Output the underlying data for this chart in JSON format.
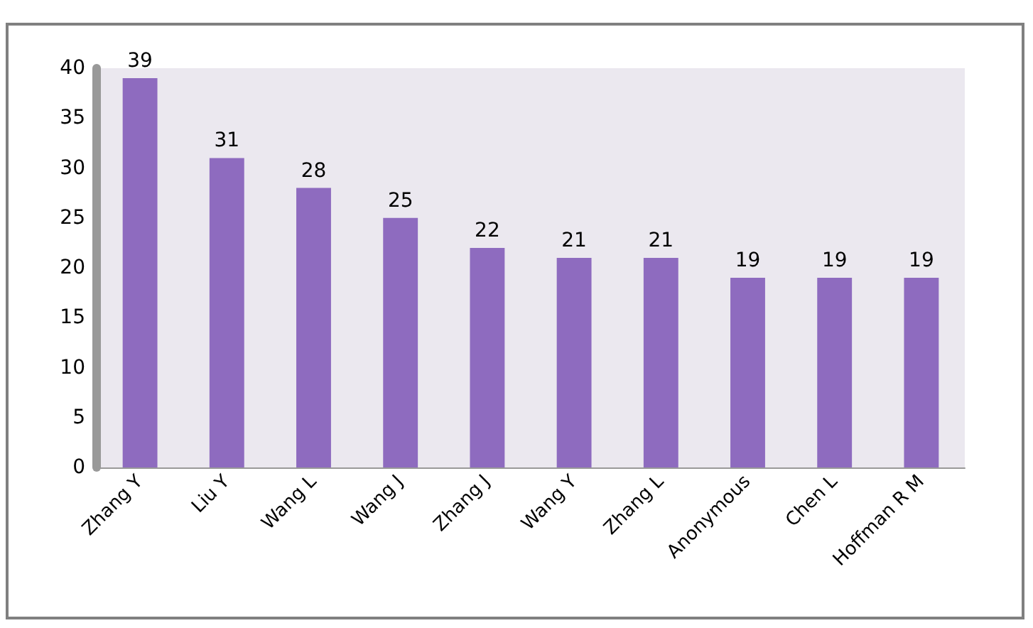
{
  "chart_data": {
    "type": "bar",
    "categories": [
      "Zhang Y",
      "Liu Y",
      "Wang L",
      "Wang J",
      "Zhang J",
      "Wang Y",
      "Zhang L",
      "Anonymous",
      "Chen L",
      "Hoffman R M"
    ],
    "values": [
      39,
      31,
      28,
      25,
      22,
      21,
      21,
      19,
      19,
      19
    ],
    "color": "#8e6bbf",
    "ylim": [
      0,
      40
    ],
    "yticks": [
      0,
      5,
      10,
      15,
      20,
      25,
      30,
      35,
      40
    ],
    "grid": false,
    "data_labels": true
  }
}
